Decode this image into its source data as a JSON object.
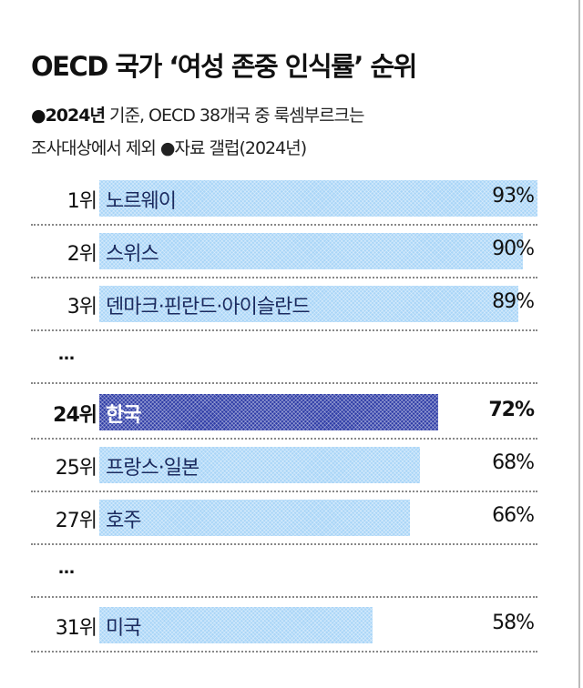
{
  "chart_data": {
    "type": "bar",
    "orientation": "horizontal",
    "title": "OECD 국가 ‘여성 존중 인식률’ 순위",
    "subtitle_bold": "●2024년",
    "subtitle_line1": " 기준, OECD 38개국 중 룩셈부르크는",
    "subtitle_line2": "조사대상에서 제외 ●자료 갤럽(2024년)",
    "unit": "%",
    "rows": [
      {
        "rank": "1위",
        "category": "노르웨이",
        "value": 93,
        "label": "93%"
      },
      {
        "rank": "2위",
        "category": "스위스",
        "value": 90,
        "label": "90%"
      },
      {
        "rank": "3위",
        "category": "덴마크·핀란드·아이슬란드",
        "value": 89,
        "label": "89%"
      },
      {
        "ellipsis": "…"
      },
      {
        "rank": "24위",
        "category": "한국",
        "value": 72,
        "label": "72%",
        "highlight": true
      },
      {
        "rank": "25위",
        "category": "프랑스·일본",
        "value": 68,
        "label": "68%"
      },
      {
        "rank": "27위",
        "category": "호주",
        "value": 66,
        "label": "66%"
      },
      {
        "ellipsis": "…"
      },
      {
        "rank": "31위",
        "category": "미국",
        "value": 58,
        "label": "58%"
      }
    ],
    "colors": {
      "bar": "#a9d5f7",
      "highlight": "#2e3ca6",
      "label": "#1b2a5e"
    }
  }
}
